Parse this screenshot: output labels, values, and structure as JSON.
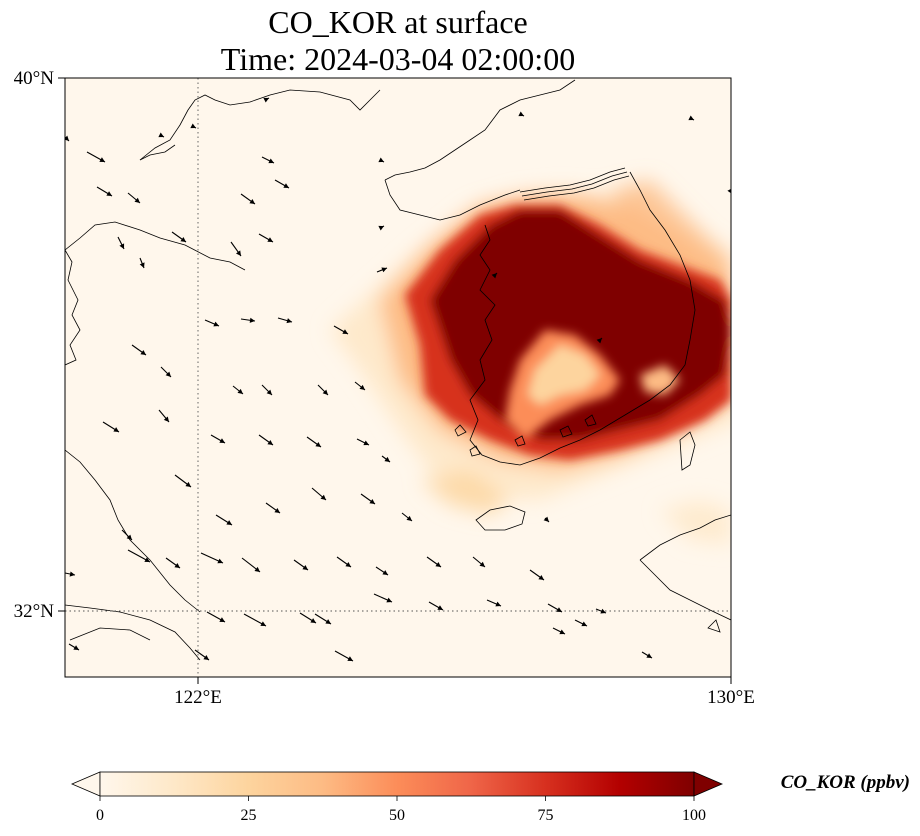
{
  "title": {
    "line1": "CO_KOR at surface",
    "line2": "Time: 2024-03-04 02:00:00"
  },
  "map": {
    "lon_range": [
      120,
      130
    ],
    "lat_range": [
      31,
      40
    ],
    "lat_ticks": [
      {
        "value": 40,
        "label": "40°N"
      },
      {
        "value": 32,
        "label": "32°N"
      }
    ],
    "lon_ticks": [
      {
        "value": 122,
        "label": "122°E"
      },
      {
        "value": 130,
        "label": "130°E"
      }
    ],
    "gridlines": {
      "lon": [
        122
      ],
      "lat": [
        32
      ],
      "style": "dotted"
    }
  },
  "colorbar": {
    "label": "CO_KOR (ppbv)",
    "ticks": [
      "0",
      "25",
      "50",
      "75",
      "100"
    ],
    "tick_values": [
      0,
      25,
      50,
      75,
      100
    ],
    "range": [
      0,
      100
    ],
    "extend": "both",
    "colormap": "OrRd",
    "colors": [
      "#fff7ec",
      "#fee8c8",
      "#fdd49e",
      "#fdbb84",
      "#fc8d59",
      "#ef6548",
      "#d7301f",
      "#b30000",
      "#7f0000"
    ]
  }
}
